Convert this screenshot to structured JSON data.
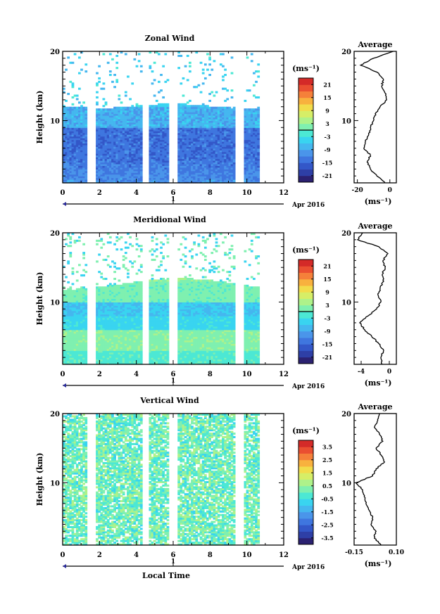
{
  "figure": {
    "x_label": "Local Time",
    "date_label": "Apr 2016",
    "day_label": "1",
    "x_ticks": [
      "0",
      "2",
      "4",
      "6",
      "8",
      "10",
      "12"
    ],
    "unit_label": "(ms⁻¹)"
  },
  "colormap": [
    "#2b2171",
    "#2e3fa6",
    "#3357c8",
    "#3f76df",
    "#4a95ea",
    "#45b7ef",
    "#39d4f0",
    "#4ce8d4",
    "#7ff0b0",
    "#aef28a",
    "#d6ee67",
    "#f2dc4b",
    "#f8b13e",
    "#f5803a",
    "#ea4f31",
    "#d42a28"
  ],
  "chart_data": [
    {
      "id": "zonal",
      "type": "heatmap",
      "title": "Zonal Wind",
      "xlabel": "",
      "ylabel": "Height (km)",
      "xlim": [
        0,
        12
      ],
      "ylim": [
        1,
        20
      ],
      "yticks": [
        "10",
        "20"
      ],
      "colorbar_ticks": [
        "21",
        "15",
        "9",
        "3",
        "-3",
        "-9",
        "-15",
        "-21"
      ],
      "colorbar_range": [
        -24,
        24
      ],
      "data_gaps_hours": [
        [
          1.3,
          1.8
        ],
        [
          4.3,
          4.7
        ],
        [
          5.8,
          6.2
        ],
        [
          9.4,
          9.8
        ]
      ],
      "data_end_hour": 10.6,
      "profile": {
        "title": "Average",
        "xlabel": "(ms⁻¹)",
        "xticks": [
          "-20",
          "0"
        ],
        "xlim": [
          -22,
          4
        ],
        "heights_km": [
          1,
          2,
          3,
          4,
          5,
          6,
          7,
          8,
          9,
          10,
          11,
          12,
          13,
          14,
          15,
          16,
          17,
          18,
          19,
          20
        ],
        "values": [
          -3,
          -8,
          -12,
          -14,
          -12,
          -16,
          -15,
          -13,
          -12,
          -10,
          -9,
          -6,
          -2,
          -3,
          -5,
          -4,
          -8,
          -18,
          -10,
          2
        ]
      }
    },
    {
      "id": "meridional",
      "type": "heatmap",
      "title": "Meridional Wind",
      "xlabel": "",
      "ylabel": "Height (km)",
      "xlim": [
        0,
        12
      ],
      "ylim": [
        1,
        20
      ],
      "yticks": [
        "10",
        "20"
      ],
      "colorbar_ticks": [
        "21",
        "15",
        "9",
        "3",
        "-3",
        "-9",
        "-15",
        "-21"
      ],
      "colorbar_range": [
        -24,
        24
      ],
      "data_gaps_hours": [
        [
          1.3,
          1.8
        ],
        [
          4.3,
          4.7
        ],
        [
          5.8,
          6.2
        ],
        [
          9.4,
          9.8
        ]
      ],
      "data_end_hour": 10.6,
      "profile": {
        "title": "Average",
        "xlabel": "(ms⁻¹)",
        "xticks": [
          "-4",
          "0"
        ],
        "xlim": [
          -5,
          1
        ],
        "heights_km": [
          1,
          2,
          3,
          4,
          5,
          6,
          7,
          8,
          9,
          10,
          11,
          12,
          13,
          14,
          15,
          16,
          17,
          18,
          19,
          20
        ],
        "values": [
          -1,
          -1.2,
          -0.8,
          -1.5,
          -2.5,
          -3.5,
          -4.2,
          -3,
          -1.8,
          -1.2,
          -1.6,
          -1.3,
          -0.8,
          -1,
          -0.6,
          -0.9,
          -0.2,
          -1.5,
          -4.5,
          -3.8
        ]
      }
    },
    {
      "id": "vertical",
      "type": "heatmap",
      "title": "Vertical Wind",
      "xlabel": "Local Time",
      "ylabel": "Height (km)",
      "xlim": [
        0,
        12
      ],
      "ylim": [
        1,
        20
      ],
      "yticks": [
        "10",
        "20"
      ],
      "colorbar_ticks": [
        "3.5",
        "2.5",
        "1.5",
        "0.5",
        "-0.5",
        "-1.5",
        "-2.5",
        "-3.5"
      ],
      "colorbar_range": [
        -4,
        4
      ],
      "data_gaps_hours": [
        [
          1.3,
          1.8
        ],
        [
          4.3,
          4.7
        ],
        [
          5.8,
          6.2
        ],
        [
          9.4,
          9.8
        ]
      ],
      "data_end_hour": 10.6,
      "profile": {
        "title": "Average",
        "xlabel": "(ms⁻¹)",
        "xticks": [
          "-0.15",
          "0.10"
        ],
        "xlim": [
          -0.15,
          0.1
        ],
        "heights_km": [
          1,
          2,
          3,
          4,
          5,
          6,
          7,
          8,
          9,
          10,
          11,
          12,
          13,
          14,
          15,
          16,
          17,
          18,
          19,
          20
        ],
        "values": [
          0.01,
          -0.03,
          -0.02,
          -0.05,
          -0.04,
          -0.06,
          -0.08,
          -0.09,
          -0.1,
          -0.14,
          -0.04,
          -0.02,
          0.03,
          0.01,
          -0.02,
          0.02,
          0.0,
          -0.03,
          -0.01,
          0.0
        ]
      }
    }
  ]
}
